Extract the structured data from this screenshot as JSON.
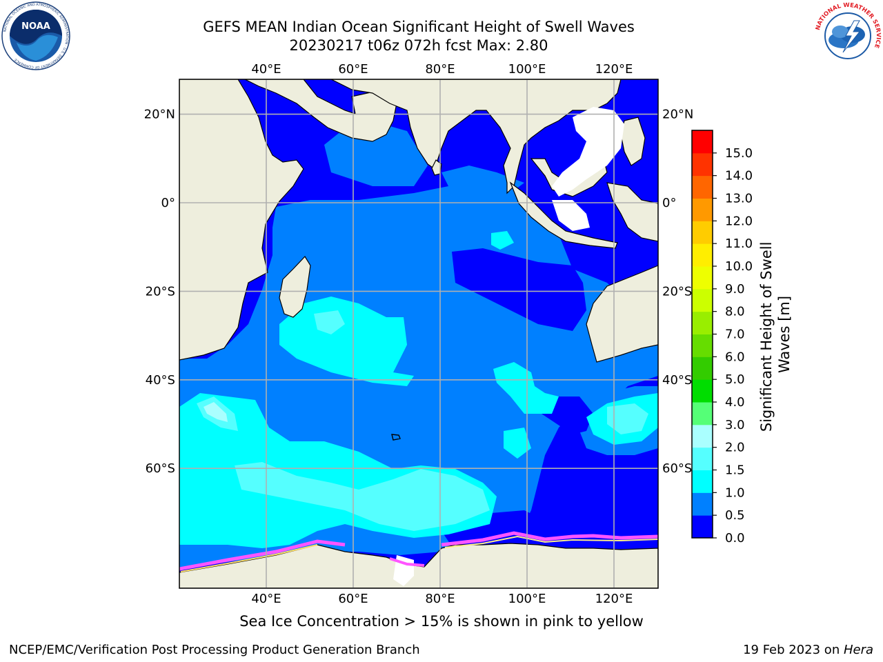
{
  "header": {
    "title_line1": "GEFS MEAN Indian Ocean Significant Height of Swell Waves",
    "title_line2": "20230217 t06z 072h fcst   Max: 2.80"
  },
  "logos": {
    "left": "noaa-logo",
    "left_text": "NOAA",
    "left_ring_text": "NATIONAL OCEANIC AND ATMOSPHERIC ADMINISTRATION · U.S. DEPARTMENT OF COMMERCE",
    "right": "nws-logo",
    "right_ring_text": "NATIONAL WEATHER SERVICE"
  },
  "map": {
    "lon_ticks": [
      "40°E",
      "60°E",
      "80°E",
      "100°E",
      "120°E"
    ],
    "lat_ticks": [
      "20°N",
      "0°",
      "20°S",
      "40°S",
      "60°S"
    ],
    "lon_values": [
      40,
      60,
      80,
      100,
      120
    ],
    "lat_values": [
      20,
      0,
      -20,
      -40,
      -60
    ],
    "ocean_color_low": "#0000ff",
    "ocean_color_mid": "#0080ff",
    "ocean_color_high": "#00ffff",
    "land_color": "#eeeedd"
  },
  "colorbar": {
    "label_line1": "Significant Height of Swell",
    "label_line2": "Waves [m]",
    "ticks": [
      "0.0",
      "0.5",
      "1.0",
      "1.5",
      "2.0",
      "3.0",
      "4.0",
      "5.0",
      "6.0",
      "7.0",
      "8.0",
      "9.0",
      "10.0",
      "11.0",
      "12.0",
      "13.0",
      "14.0",
      "15.0"
    ],
    "colors": [
      "#0000ff",
      "#0080ff",
      "#00ffff",
      "#55ffff",
      "#aaffff",
      "#55ff77",
      "#00dd00",
      "#33cc00",
      "#66dd00",
      "#99ee00",
      "#ccff00",
      "#eeff00",
      "#ffee00",
      "#ffcc00",
      "#ff9900",
      "#ff6600",
      "#ff3300",
      "#ff0000"
    ]
  },
  "caption": "Sea Ice Concentration > 15% is shown in pink to yellow",
  "footer": {
    "left": "NCEP/EMC/Verification Post Processing Product Generation Branch",
    "right_date": "19 Feb 2023 on ",
    "right_host": "Hera"
  }
}
